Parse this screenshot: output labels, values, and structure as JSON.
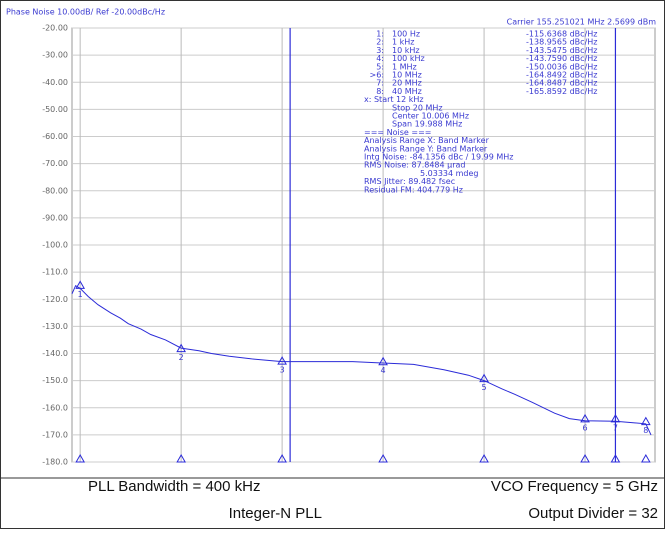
{
  "chart_data": {
    "type": "line",
    "header_left": "Phase Noise 10.00dB/ Ref -20.00dBc/Hz",
    "header_right": "Carrier 155.251021 MHz   2.5699 dBm",
    "xlog": true,
    "grid": true,
    "xlim": [
      83,
      49300000
    ],
    "xticks": [
      100,
      1000,
      10000,
      100000,
      1000000,
      10000000
    ],
    "ylim": [
      -180,
      -20
    ],
    "yticks": [
      {
        "value": -20,
        "label": "-20.00"
      },
      {
        "value": -30,
        "label": "-30.00"
      },
      {
        "value": -40,
        "label": "-40.00"
      },
      {
        "value": -50,
        "label": "-50.00"
      },
      {
        "value": -60,
        "label": "-60.00"
      },
      {
        "value": -70,
        "label": "-70.00"
      },
      {
        "value": -80,
        "label": "-80.00"
      },
      {
        "value": -90,
        "label": "-90.00"
      },
      {
        "value": -100,
        "label": "-100.0"
      },
      {
        "value": -110,
        "label": "-110.0"
      },
      {
        "value": -120,
        "label": "-120.0"
      },
      {
        "value": -130,
        "label": "-130.0"
      },
      {
        "value": -140,
        "label": "-140.0"
      },
      {
        "value": -150,
        "label": "-150.0"
      },
      {
        "value": -160,
        "label": "-160.0"
      },
      {
        "value": -170,
        "label": "-170.0"
      },
      {
        "value": -180,
        "label": "-180.0"
      }
    ],
    "series": [
      {
        "color": "#2b2bd8",
        "x": [
          83,
          90,
          100,
          120,
          150,
          200,
          250,
          300,
          400,
          500,
          700,
          1000,
          1500,
          2000,
          3000,
          5000,
          7000,
          10000,
          20000,
          50000,
          100000,
          200000,
          400000,
          700000,
          1000000,
          1500000,
          2000000,
          3000000,
          5000000,
          7000000,
          10000000,
          20000000,
          30000000,
          40000000,
          45000000
        ],
        "values": [
          -118,
          -115,
          -116,
          -119,
          -122,
          -125,
          -127,
          -129,
          -131,
          -133,
          -135,
          -138,
          -139,
          -140,
          -141,
          -142,
          -142.5,
          -143,
          -143,
          -143,
          -143.5,
          -144,
          -146,
          -148,
          -150,
          -153,
          -155,
          -158,
          -162,
          -164,
          -164.8,
          -165,
          -165.5,
          -165.9,
          -170
        ]
      }
    ],
    "markers": {
      "labels": [
        "1:",
        "2:",
        "3:",
        "4:",
        "5:",
        ">6:",
        "7:",
        "8:"
      ],
      "symbols": [
        "1",
        "2",
        "3",
        "4",
        "5",
        "6",
        "7",
        "8"
      ],
      "x": [
        100,
        1000,
        10000,
        100000,
        1000000,
        10000000,
        20000000,
        40000000
      ],
      "x_labels": [
        "100 Hz",
        "1 kHz",
        "10 kHz",
        "100 kHz",
        "1 MHz",
        "10 MHz",
        "20 MHz",
        "40 MHz"
      ],
      "values": [
        -115.6368,
        -138.9565,
        -143.5475,
        -143.759,
        -150.0036,
        -164.8492,
        -164.8487,
        -165.8592
      ],
      "value_labels": [
        "-115.6368 dBc/Hz",
        "-138.9565 dBc/Hz",
        "-143.5475 dBc/Hz",
        "-143.7590 dBc/Hz",
        "-150.0036 dBc/Hz",
        "-164.8492 dBc/Hz",
        "-164.8487 dBc/Hz",
        "-165.8592 dBc/Hz"
      ]
    },
    "band": {
      "x": [
        12000,
        20000000
      ]
    },
    "info_lines": [
      "x: Start 12 kHz",
      "Stop 20 MHz",
      "Center 10.006 MHz",
      "Span 19.988 MHz",
      "=== Noise ===",
      "Analysis Range X: Band Marker",
      "Analysis Range Y: Band Marker",
      "Intg Noise: -84.1356 dBc / 19.99 MHz",
      "RMS Noise: 87.8484 µrad",
      "5.03334 mdeg",
      "RMS Jitter: 89.482 fsec",
      "Residual FM: 404.779 Hz"
    ],
    "captions": [
      "PLL Bandwidth = 400 kHz",
      "VCO Frequency = 5 GHz",
      "Integer-N PLL",
      "Output Divider = 32"
    ]
  }
}
